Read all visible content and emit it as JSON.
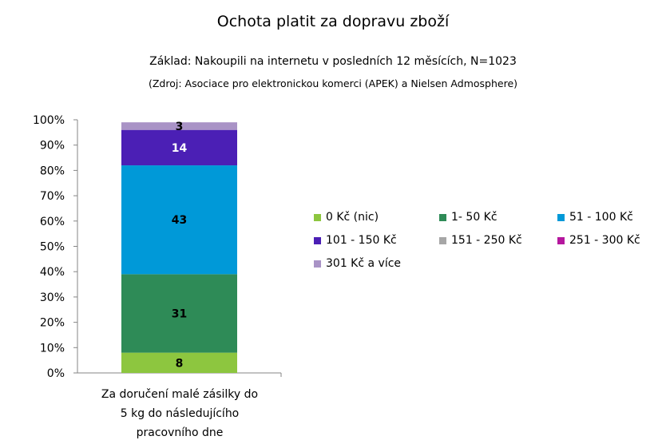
{
  "title": "Ochota platit za dopravu zboží",
  "subtitle": "Základ: Nakoupili na internetu v posledních 12 měsících, N=1023",
  "source": "(Zdroj: Asociace pro elektronickou komerci (APEK) a Nielsen Admosphere)",
  "chart_data": {
    "type": "bar",
    "stacked": true,
    "categories": [
      "Za doručení malé zásilky do 5 kg do následujícího pracovního dne"
    ],
    "category_lines": [
      "Za doručení malé zásilky do",
      "5 kg do následujícího",
      "pracovního dne"
    ],
    "series": [
      {
        "name": "0 Kč (nic)",
        "values": [
          8
        ],
        "color": "#8DC63F",
        "label_color": "#000000"
      },
      {
        "name": "1- 50 Kč",
        "values": [
          31
        ],
        "color": "#2E8B57",
        "label_color": "#000000"
      },
      {
        "name": "51 - 100 Kč",
        "values": [
          43
        ],
        "color": "#0099D8",
        "label_color": "#000000"
      },
      {
        "name": "101 - 150 Kč",
        "values": [
          14
        ],
        "color": "#4B1FB5",
        "label_color": "#FFFFFF"
      },
      {
        "name": "151 - 250 Kč",
        "values": [
          0
        ],
        "color": "#A6A6A6",
        "label_color": "#000000"
      },
      {
        "name": "251 - 300 Kč",
        "values": [
          0
        ],
        "color": "#B5179E",
        "label_color": "#000000"
      },
      {
        "name": "301 Kč a více",
        "values": [
          3
        ],
        "color": "#A993C6",
        "label_color": "#000000"
      }
    ],
    "y_ticks": [
      "0%",
      "10%",
      "20%",
      "30%",
      "40%",
      "50%",
      "60%",
      "70%",
      "80%",
      "90%",
      "100%"
    ],
    "ylim": [
      0,
      100
    ],
    "grid": false,
    "legend_position": "right"
  }
}
